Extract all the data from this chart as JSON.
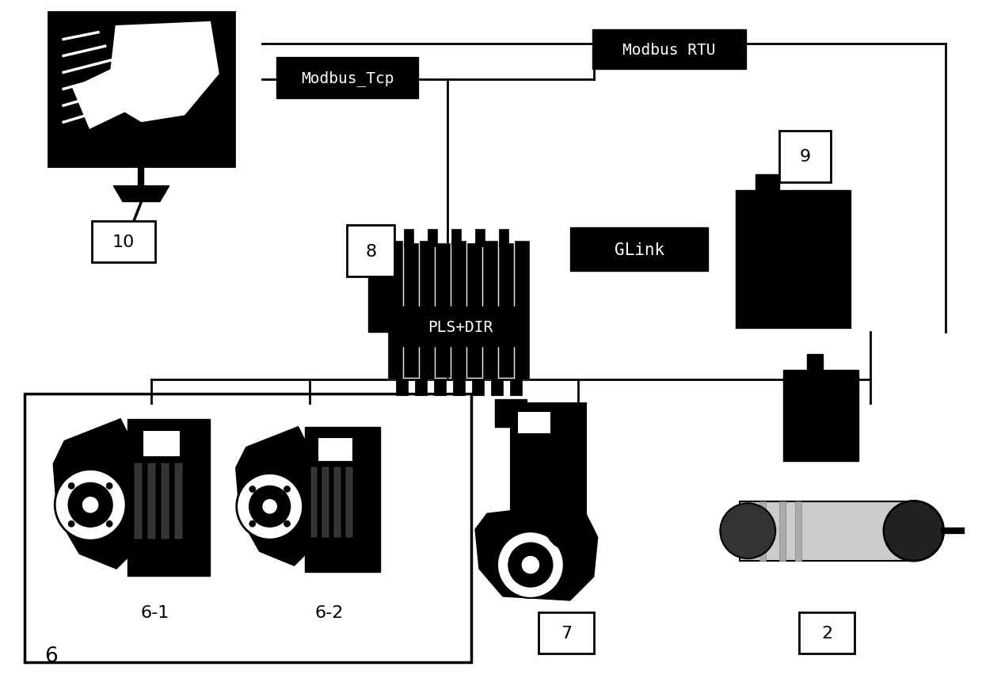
{
  "bg_color": "#ffffff",
  "fig_width": 12.4,
  "fig_height": 8.62,
  "labels": {
    "modbus_tcp": "Modbus_Tcp",
    "modbus_rtu": "Modbus RTU",
    "glink": "GLink",
    "pls_dir": "PLS+DIR",
    "label_8": "8",
    "label_9": "9",
    "label_10": "10",
    "label_6": "6",
    "label_61": "6-1",
    "label_62": "6-2",
    "label_7": "7",
    "label_2": "2"
  }
}
